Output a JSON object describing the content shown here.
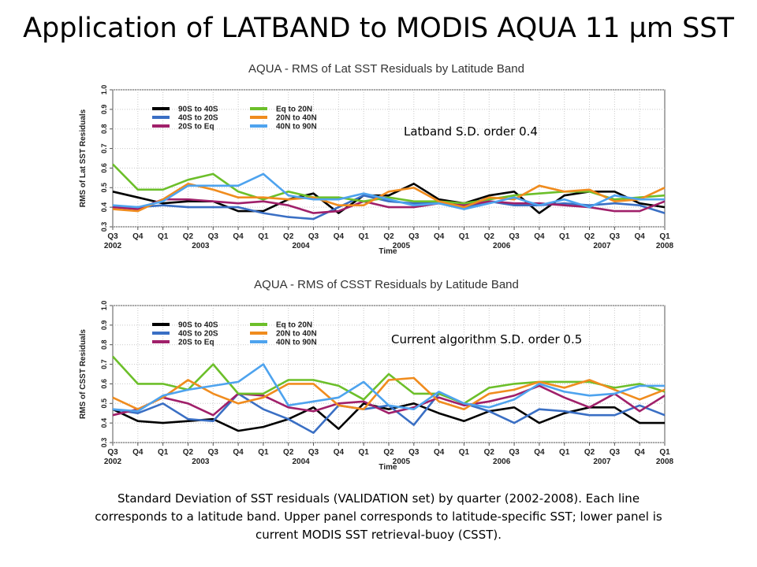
{
  "slide": {
    "title": "Application of LATBAND to MODIS AQUA 11 µm SST",
    "note_upper": "Latband S.D. order 0.4",
    "note_lower": "Current algorithm S.D. order 0.5",
    "caption": [
      "Standard Deviation of SST residuals (VALIDATION set) by quarter (2002-2008).  Each line",
      "corresponds to a latitude band. Upper panel corresponds to latitude-specific SST; lower panel is",
      "current MODIS SST retrieval-buoy (CSST)."
    ]
  },
  "chart_data": [
    {
      "type": "line",
      "title": "AQUA - RMS of Lat SST Residuals by Latitude Band",
      "xlabel": "Time",
      "ylabel": "RMS of Lat SST Residuals",
      "categories": [
        "Q3",
        "Q4",
        "Q1",
        "Q2",
        "Q3",
        "Q4",
        "Q1",
        "Q2",
        "Q3",
        "Q4",
        "Q1",
        "Q2",
        "Q3",
        "Q4",
        "Q1",
        "Q2",
        "Q3",
        "Q4",
        "Q1",
        "Q2",
        "Q3",
        "Q4",
        "Q1"
      ],
      "years": [
        {
          "label": "2002",
          "index": 0
        },
        {
          "label": "2003",
          "index": 3.5
        },
        {
          "label": "2004",
          "index": 7.5
        },
        {
          "label": "2005",
          "index": 11.5
        },
        {
          "label": "2006",
          "index": 15.5
        },
        {
          "label": "2007",
          "index": 19.5
        },
        {
          "label": "2008",
          "index": 22
        }
      ],
      "ylim": [
        0.3,
        1.0
      ],
      "yticks": [
        "0.3",
        "0.4",
        "0.5",
        "0.6",
        "0.7",
        "0.8",
        "0.9",
        "1.0"
      ],
      "grid": true,
      "legend_position": "top-left",
      "series": [
        {
          "name": "90S to 40S",
          "color": "#000000",
          "values": [
            0.48,
            0.45,
            0.42,
            0.43,
            0.43,
            0.38,
            0.38,
            0.44,
            0.47,
            0.37,
            0.46,
            0.46,
            0.52,
            0.44,
            0.42,
            0.46,
            0.48,
            0.37,
            0.46,
            0.48,
            0.48,
            0.42,
            0.4
          ]
        },
        {
          "name": "40S to 20S",
          "color": "#3a6fc4",
          "values": [
            0.4,
            0.4,
            0.41,
            0.4,
            0.4,
            0.4,
            0.37,
            0.35,
            0.34,
            0.4,
            0.46,
            0.43,
            0.42,
            0.42,
            0.4,
            0.43,
            0.41,
            0.41,
            0.42,
            0.41,
            0.42,
            0.41,
            0.37
          ]
        },
        {
          "name": "20S to Eq",
          "color": "#a0206a",
          "values": [
            0.4,
            0.39,
            0.44,
            0.44,
            0.43,
            0.42,
            0.43,
            0.41,
            0.37,
            0.38,
            0.43,
            0.4,
            0.4,
            0.42,
            0.41,
            0.43,
            0.42,
            0.42,
            0.41,
            0.4,
            0.38,
            0.38,
            0.43
          ]
        },
        {
          "name": "Eq to 20N",
          "color": "#6cbf2a",
          "values": [
            0.62,
            0.49,
            0.49,
            0.54,
            0.57,
            0.48,
            0.44,
            0.48,
            0.45,
            0.45,
            0.43,
            0.45,
            0.43,
            0.43,
            0.42,
            0.44,
            0.46,
            0.47,
            0.48,
            0.48,
            0.44,
            0.45,
            0.46
          ]
        },
        {
          "name": "20N to 40N",
          "color": "#f08c1e",
          "values": [
            0.39,
            0.38,
            0.44,
            0.52,
            0.49,
            0.45,
            0.45,
            0.44,
            0.45,
            0.41,
            0.41,
            0.48,
            0.5,
            0.43,
            0.4,
            0.45,
            0.44,
            0.51,
            0.48,
            0.49,
            0.43,
            0.44,
            0.5
          ]
        },
        {
          "name": "40N to 90N",
          "color": "#4ea3ee",
          "values": [
            0.41,
            0.4,
            0.43,
            0.51,
            0.51,
            0.51,
            0.57,
            0.46,
            0.44,
            0.44,
            0.47,
            0.44,
            0.41,
            0.42,
            0.39,
            0.42,
            0.45,
            0.41,
            0.44,
            0.4,
            0.46,
            0.44,
            0.44
          ]
        }
      ]
    },
    {
      "type": "line",
      "title": "AQUA - RMS of CSST Residuals by Latitude Band",
      "xlabel": "Time",
      "ylabel": "RMS of CSST Residuals",
      "categories": [
        "Q3",
        "Q4",
        "Q1",
        "Q2",
        "Q3",
        "Q4",
        "Q1",
        "Q2",
        "Q3",
        "Q4",
        "Q1",
        "Q2",
        "Q3",
        "Q4",
        "Q1",
        "Q2",
        "Q3",
        "Q4",
        "Q1",
        "Q2",
        "Q3",
        "Q4",
        "Q1"
      ],
      "years": [
        {
          "label": "2002",
          "index": 0
        },
        {
          "label": "2003",
          "index": 3.5
        },
        {
          "label": "2004",
          "index": 7.5
        },
        {
          "label": "2005",
          "index": 11.5
        },
        {
          "label": "2006",
          "index": 15.5
        },
        {
          "label": "2007",
          "index": 19.5
        },
        {
          "label": "2008",
          "index": 22
        }
      ],
      "ylim": [
        0.3,
        1.0
      ],
      "yticks": [
        "0.3",
        "0.4",
        "0.5",
        "0.6",
        "0.7",
        "0.8",
        "0.9",
        "1.0"
      ],
      "grid": true,
      "legend_position": "top-left",
      "series": [
        {
          "name": "90S to 40S",
          "color": "#000000",
          "values": [
            0.47,
            0.41,
            0.4,
            0.41,
            0.42,
            0.36,
            0.38,
            0.42,
            0.48,
            0.37,
            0.5,
            0.47,
            0.5,
            0.45,
            0.41,
            0.46,
            0.48,
            0.4,
            0.45,
            0.48,
            0.48,
            0.4,
            0.4
          ]
        },
        {
          "name": "40S to 20S",
          "color": "#3a6fc4",
          "values": [
            0.47,
            0.45,
            0.5,
            0.42,
            0.41,
            0.55,
            0.47,
            0.42,
            0.35,
            0.49,
            0.47,
            0.49,
            0.39,
            0.55,
            0.5,
            0.46,
            0.4,
            0.47,
            0.46,
            0.44,
            0.44,
            0.49,
            0.44
          ]
        },
        {
          "name": "20S to Eq",
          "color": "#a0206a",
          "values": [
            0.44,
            0.47,
            0.53,
            0.5,
            0.44,
            0.55,
            0.54,
            0.48,
            0.46,
            0.5,
            0.51,
            0.45,
            0.48,
            0.53,
            0.49,
            0.51,
            0.54,
            0.59,
            0.53,
            0.48,
            0.55,
            0.46,
            0.54
          ]
        },
        {
          "name": "Eq to 20N",
          "color": "#6cbf2a",
          "values": [
            0.74,
            0.6,
            0.6,
            0.57,
            0.7,
            0.55,
            0.55,
            0.62,
            0.62,
            0.59,
            0.52,
            0.65,
            0.55,
            0.55,
            0.5,
            0.58,
            0.6,
            0.61,
            0.61,
            0.61,
            0.58,
            0.6,
            0.56
          ]
        },
        {
          "name": "20N to 40N",
          "color": "#f08c1e",
          "values": [
            0.53,
            0.47,
            0.53,
            0.62,
            0.55,
            0.5,
            0.53,
            0.6,
            0.6,
            0.49,
            0.47,
            0.62,
            0.63,
            0.51,
            0.47,
            0.55,
            0.57,
            0.61,
            0.58,
            0.62,
            0.57,
            0.52,
            0.57
          ]
        },
        {
          "name": "40N to 90N",
          "color": "#4ea3ee",
          "values": [
            0.47,
            0.46,
            0.54,
            0.57,
            0.59,
            0.61,
            0.7,
            0.49,
            0.51,
            0.53,
            0.61,
            0.49,
            0.47,
            0.56,
            0.5,
            0.48,
            0.52,
            0.6,
            0.56,
            0.54,
            0.55,
            0.59,
            0.59
          ]
        }
      ]
    }
  ]
}
